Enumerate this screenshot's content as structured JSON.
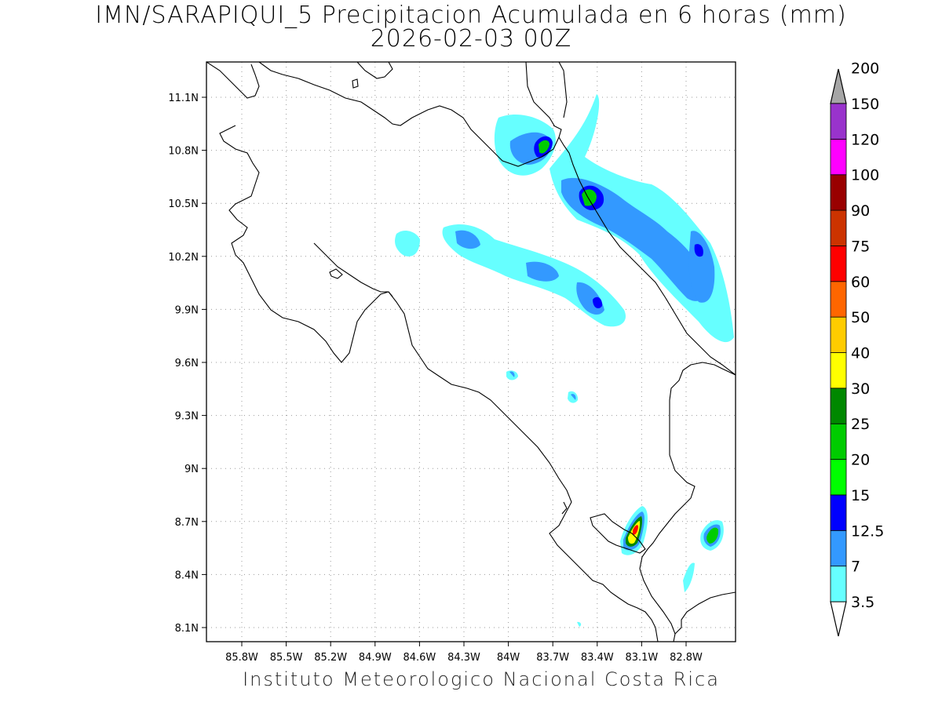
{
  "title": {
    "line1": "IMN/SARAPIQUI_5 Precipitacion Acumulada en 6 horas (mm)",
    "line2": "2026-02-03 00Z"
  },
  "footer": "Instituto Meteorologico Nacional Costa Rica",
  "axes": {
    "x_ticks": [
      "85.8W",
      "85.5W",
      "85.2W",
      "84.9W",
      "84.6W",
      "84.3W",
      "84W",
      "83.7W",
      "83.4W",
      "83.1W",
      "82.8W"
    ],
    "y_ticks": [
      "11.1N",
      "10.8N",
      "10.5N",
      "10.2N",
      "9.9N",
      "9.6N",
      "9.3N",
      "9N",
      "8.7N",
      "8.4N",
      "8.1N"
    ]
  },
  "colorbar": {
    "levels": [
      "3.5",
      "7",
      "12.5",
      "15",
      "20",
      "25",
      "30",
      "40",
      "50",
      "60",
      "75",
      "90",
      "100",
      "120",
      "150",
      "200"
    ],
    "colors": [
      "#66ffff",
      "#3399ff",
      "#0000ff",
      "#00ff00",
      "#00cc00",
      "#008800",
      "#ffff00",
      "#ffcc00",
      "#ff6600",
      "#ff0000",
      "#cc3300",
      "#990000",
      "#ff00ff",
      "#9933cc",
      "#f2f2f2",
      "#a6a6a6"
    ],
    "low_arrow_color": "#ffffff",
    "high_arrow_color": "#a6a6a6"
  }
}
